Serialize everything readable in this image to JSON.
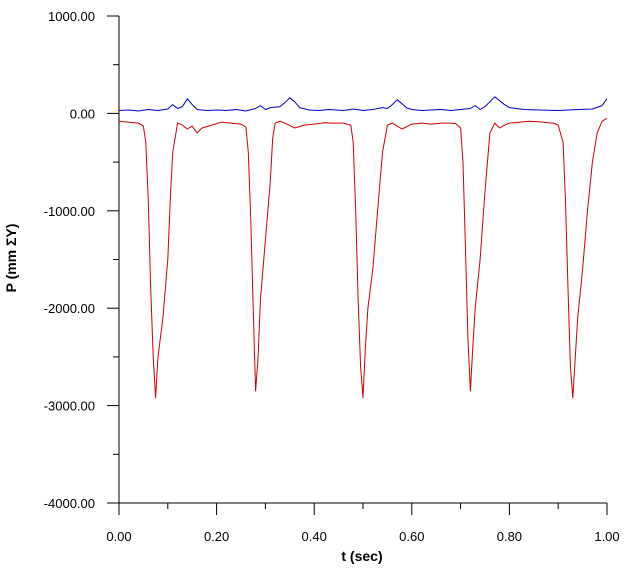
{
  "chart_data": {
    "type": "line",
    "title": "",
    "xlabel": "t (sec)",
    "ylabel": "P (mm ΣY)",
    "xlim": [
      0,
      1
    ],
    "ylim": [
      -4000,
      1000
    ],
    "x_ticks": [
      0,
      0.2,
      0.4,
      0.6,
      0.8,
      1.0
    ],
    "x_tick_labels": [
      "0.00",
      "0.20",
      "0.40",
      "0.60",
      "0.80",
      "1.00"
    ],
    "x_minor_step": 0.1,
    "y_ticks": [
      -4000,
      -3000,
      -2000,
      -1000,
      0,
      1000
    ],
    "y_tick_labels": [
      "-4000.00",
      "-3000.00",
      "-2000.00",
      "-1000.00",
      "0.00",
      "1000.00"
    ],
    "y_minor_step": 500,
    "grid": false,
    "legend": "none",
    "series": [
      {
        "color": "#0000cc",
        "x": [
          0.0,
          0.02,
          0.04,
          0.06,
          0.08,
          0.1,
          0.11,
          0.12,
          0.13,
          0.14,
          0.15,
          0.16,
          0.18,
          0.2,
          0.22,
          0.24,
          0.26,
          0.28,
          0.29,
          0.3,
          0.31,
          0.33,
          0.34,
          0.35,
          0.36,
          0.37,
          0.39,
          0.41,
          0.43,
          0.46,
          0.48,
          0.5,
          0.52,
          0.54,
          0.55,
          0.56,
          0.57,
          0.58,
          0.59,
          0.6,
          0.62,
          0.64,
          0.66,
          0.68,
          0.7,
          0.72,
          0.73,
          0.74,
          0.75,
          0.76,
          0.77,
          0.78,
          0.79,
          0.8,
          0.83,
          0.86,
          0.9,
          0.94,
          0.97,
          0.99,
          1.0
        ],
        "values": [
          30,
          35,
          25,
          40,
          30,
          45,
          90,
          50,
          70,
          150,
          90,
          40,
          30,
          35,
          30,
          40,
          25,
          50,
          80,
          40,
          60,
          70,
          110,
          160,
          120,
          60,
          35,
          30,
          40,
          30,
          45,
          30,
          40,
          60,
          50,
          90,
          140,
          100,
          55,
          40,
          30,
          35,
          40,
          30,
          40,
          50,
          80,
          40,
          70,
          120,
          170,
          130,
          90,
          60,
          40,
          35,
          30,
          40,
          45,
          80,
          150
        ]
      },
      {
        "color": "#cc0000",
        "x": [
          0.0,
          0.02,
          0.04,
          0.05,
          0.055,
          0.06,
          0.065,
          0.07,
          0.075,
          0.08,
          0.09,
          0.1,
          0.105,
          0.11,
          0.12,
          0.13,
          0.14,
          0.15,
          0.16,
          0.17,
          0.19,
          0.21,
          0.23,
          0.25,
          0.26,
          0.265,
          0.27,
          0.275,
          0.28,
          0.285,
          0.29,
          0.3,
          0.31,
          0.315,
          0.32,
          0.33,
          0.34,
          0.36,
          0.38,
          0.4,
          0.42,
          0.44,
          0.46,
          0.475,
          0.48,
          0.485,
          0.49,
          0.495,
          0.5,
          0.505,
          0.51,
          0.52,
          0.53,
          0.54,
          0.55,
          0.56,
          0.58,
          0.6,
          0.62,
          0.64,
          0.66,
          0.68,
          0.69,
          0.7,
          0.705,
          0.71,
          0.715,
          0.72,
          0.725,
          0.73,
          0.74,
          0.75,
          0.76,
          0.77,
          0.78,
          0.79,
          0.8,
          0.82,
          0.84,
          0.86,
          0.88,
          0.89,
          0.9,
          0.91,
          0.915,
          0.92,
          0.925,
          0.93,
          0.935,
          0.94,
          0.95,
          0.96,
          0.97,
          0.98,
          0.99,
          1.0
        ],
        "values": [
          -80,
          -90,
          -100,
          -130,
          -300,
          -900,
          -1800,
          -2500,
          -2920,
          -2500,
          -2100,
          -1500,
          -900,
          -400,
          -100,
          -120,
          -160,
          -130,
          -200,
          -150,
          -120,
          -90,
          -100,
          -110,
          -140,
          -400,
          -1100,
          -2000,
          -2850,
          -2500,
          -1900,
          -1300,
          -700,
          -250,
          -100,
          -80,
          -100,
          -150,
          -120,
          -110,
          -95,
          -100,
          -100,
          -120,
          -300,
          -1000,
          -1900,
          -2600,
          -2920,
          -2400,
          -2000,
          -1600,
          -1000,
          -400,
          -120,
          -100,
          -160,
          -110,
          -100,
          -110,
          -100,
          -100,
          -105,
          -150,
          -500,
          -1400,
          -2300,
          -2850,
          -2400,
          -2000,
          -1500,
          -800,
          -200,
          -100,
          -150,
          -120,
          -100,
          -90,
          -80,
          -85,
          -95,
          -100,
          -120,
          -300,
          -900,
          -1800,
          -2600,
          -2920,
          -2500,
          -2100,
          -1600,
          -1000,
          -500,
          -200,
          -80,
          -50
        ]
      }
    ]
  }
}
